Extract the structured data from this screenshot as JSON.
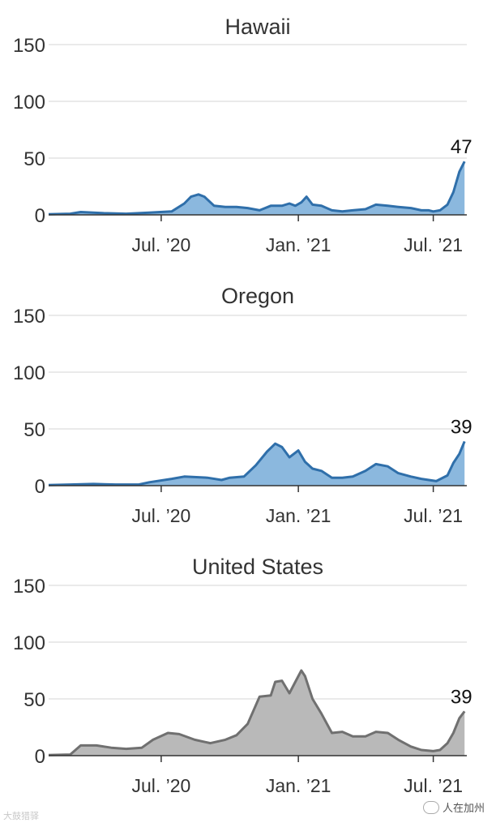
{
  "watermarks": {
    "left": "大鼓猎驿",
    "right": "人在加州",
    "right_icon": "chat-bubble-icon"
  },
  "chart_data": [
    {
      "type": "area",
      "title": "Hawaii",
      "end_label": "47",
      "color_fill": "#8bb8de",
      "color_line": "#2f6faa",
      "ylim": [
        0,
        150
      ],
      "yticks": [
        0,
        50,
        100,
        150
      ],
      "xlim": [
        "2020-02-01",
        "2021-08-15"
      ],
      "xticks": [
        {
          "date": "2020-07-01",
          "label": "Jul. ’20"
        },
        {
          "date": "2021-01-01",
          "label": "Jan. ’21"
        },
        {
          "date": "2021-07-01",
          "label": "Jul. ’21"
        }
      ],
      "grid": true,
      "x": [
        "2020-02-01",
        "2020-03-01",
        "2020-03-15",
        "2020-04-15",
        "2020-05-15",
        "2020-06-15",
        "2020-07-15",
        "2020-08-01",
        "2020-08-10",
        "2020-08-20",
        "2020-08-28",
        "2020-09-10",
        "2020-09-25",
        "2020-10-10",
        "2020-10-25",
        "2020-11-10",
        "2020-11-25",
        "2020-12-10",
        "2020-12-20",
        "2020-12-28",
        "2021-01-05",
        "2021-01-12",
        "2021-01-20",
        "2021-02-01",
        "2021-02-15",
        "2021-03-01",
        "2021-03-15",
        "2021-04-01",
        "2021-04-15",
        "2021-05-01",
        "2021-05-15",
        "2021-06-01",
        "2021-06-15",
        "2021-06-25",
        "2021-07-01",
        "2021-07-10",
        "2021-07-20",
        "2021-07-28",
        "2021-08-05",
        "2021-08-12"
      ],
      "values": [
        0.5,
        1,
        2.5,
        1.5,
        1,
        2,
        3,
        10,
        16,
        18,
        16,
        8,
        7,
        7,
        6,
        4,
        8,
        8,
        10,
        8,
        11,
        16,
        9,
        8,
        4,
        3,
        4,
        5,
        9,
        8,
        7,
        6,
        4,
        4,
        3,
        4,
        9,
        20,
        38,
        47
      ]
    },
    {
      "type": "area",
      "title": "Oregon",
      "end_label": "39",
      "color_fill": "#8bb8de",
      "color_line": "#2f6faa",
      "ylim": [
        0,
        150
      ],
      "yticks": [
        0,
        50,
        100,
        150
      ],
      "xlim": [
        "2020-02-01",
        "2021-08-15"
      ],
      "xticks": [
        {
          "date": "2020-07-01",
          "label": "Jul. ’20"
        },
        {
          "date": "2021-01-01",
          "label": "Jan. ’21"
        },
        {
          "date": "2021-07-01",
          "label": "Jul. ’21"
        }
      ],
      "grid": true,
      "x": [
        "2020-02-01",
        "2020-03-01",
        "2020-04-01",
        "2020-05-01",
        "2020-06-01",
        "2020-06-15",
        "2020-07-15",
        "2020-08-01",
        "2020-09-01",
        "2020-09-20",
        "2020-10-01",
        "2020-10-20",
        "2020-11-05",
        "2020-11-20",
        "2020-12-01",
        "2020-12-10",
        "2020-12-20",
        "2021-01-01",
        "2021-01-10",
        "2021-01-20",
        "2021-02-01",
        "2021-02-15",
        "2021-03-01",
        "2021-03-15",
        "2021-04-01",
        "2021-04-15",
        "2021-05-01",
        "2021-05-15",
        "2021-06-01",
        "2021-06-15",
        "2021-06-25",
        "2021-07-05",
        "2021-07-20",
        "2021-07-28",
        "2021-08-05",
        "2021-08-12"
      ],
      "values": [
        0.5,
        1,
        1.5,
        1,
        1,
        3,
        6,
        8,
        7,
        5,
        7,
        8,
        18,
        30,
        37,
        34,
        25,
        31,
        21,
        15,
        13,
        7,
        7,
        8,
        13,
        19,
        17,
        11,
        8,
        6,
        5,
        4,
        9,
        20,
        28,
        39
      ]
    },
    {
      "type": "area",
      "title": "United States",
      "end_label": "39",
      "color_fill": "#b9b9b9",
      "color_line": "#707070",
      "ylim": [
        0,
        150
      ],
      "yticks": [
        0,
        50,
        100,
        150
      ],
      "xlim": [
        "2020-02-01",
        "2021-08-15"
      ],
      "xticks": [
        {
          "date": "2020-07-01",
          "label": "Jul. ’20"
        },
        {
          "date": "2021-01-01",
          "label": "Jan. ’21"
        },
        {
          "date": "2021-07-01",
          "label": "Jul. ’21"
        }
      ],
      "grid": true,
      "x": [
        "2020-02-01",
        "2020-03-01",
        "2020-03-15",
        "2020-04-05",
        "2020-04-25",
        "2020-05-15",
        "2020-06-05",
        "2020-06-20",
        "2020-07-10",
        "2020-07-25",
        "2020-08-15",
        "2020-09-05",
        "2020-09-25",
        "2020-10-10",
        "2020-10-25",
        "2020-11-10",
        "2020-11-25",
        "2020-12-01",
        "2020-12-10",
        "2020-12-20",
        "2020-12-28",
        "2021-01-05",
        "2021-01-10",
        "2021-01-20",
        "2021-02-01",
        "2021-02-15",
        "2021-03-01",
        "2021-03-15",
        "2021-04-01",
        "2021-04-15",
        "2021-05-01",
        "2021-05-15",
        "2021-06-01",
        "2021-06-15",
        "2021-07-01",
        "2021-07-10",
        "2021-07-20",
        "2021-07-28",
        "2021-08-05",
        "2021-08-12"
      ],
      "values": [
        0.5,
        1,
        9,
        9,
        7,
        6,
        7,
        14,
        20,
        19,
        14,
        11,
        14,
        18,
        28,
        52,
        53,
        65,
        66,
        55,
        65,
        75,
        70,
        50,
        37,
        20,
        21,
        17,
        17,
        21,
        20,
        14,
        8,
        5,
        4,
        5,
        11,
        20,
        33,
        39
      ]
    }
  ]
}
